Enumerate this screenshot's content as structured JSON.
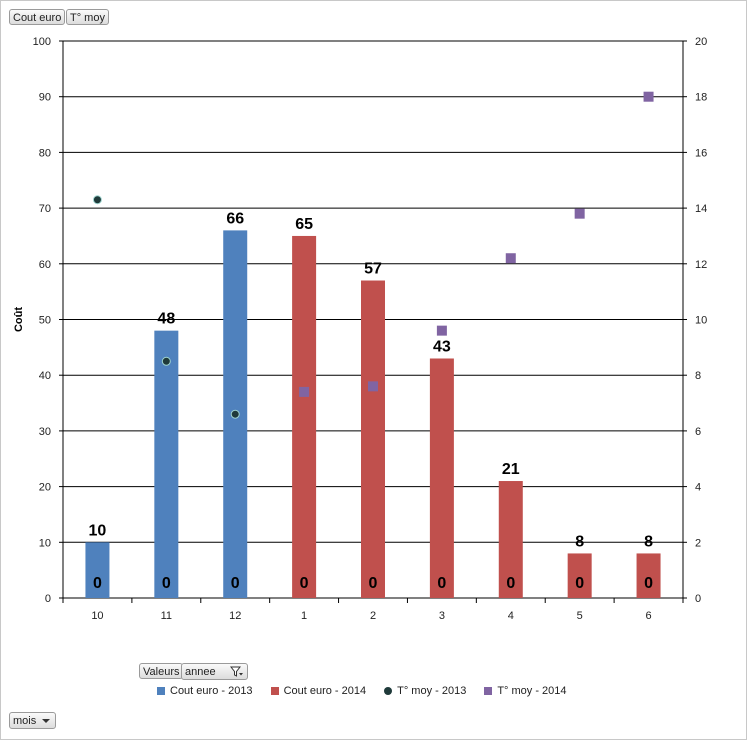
{
  "buttons": {
    "cout_euro": "Cout euro",
    "t_moy": "T° moy",
    "valeurs": "Valeurs",
    "annee": "annee",
    "mois": "mois"
  },
  "icons": {
    "filter": "filter-icon",
    "dropdown": "chevron-down-icon"
  },
  "chart_data": {
    "type": "bar",
    "categories": [
      "10",
      "11",
      "12",
      "1",
      "2",
      "3",
      "4",
      "5",
      "6"
    ],
    "ylabel": "Coût",
    "ylim": [
      0,
      100
    ],
    "y_ticks": [
      "0",
      "10",
      "20",
      "30",
      "40",
      "50",
      "60",
      "70",
      "80",
      "90",
      "100"
    ],
    "y2lim": [
      0,
      20
    ],
    "y2_ticks": [
      "0",
      "2",
      "4",
      "6",
      "8",
      "10",
      "12",
      "14",
      "16",
      "18",
      "20"
    ],
    "grid": true,
    "legend_position": "bottom",
    "series": [
      {
        "name": "Cout euro - 2013",
        "kind": "bar",
        "color": "#4f81bd",
        "values": [
          10,
          48,
          66,
          null,
          null,
          null,
          null,
          null,
          null
        ],
        "labels": [
          "10",
          "48",
          "66",
          "",
          "",
          "",
          "",
          "",
          ""
        ]
      },
      {
        "name": "Cout euro - 2014",
        "kind": "bar",
        "color": "#c0504d",
        "values": [
          null,
          null,
          null,
          65,
          57,
          43,
          21,
          8,
          8
        ],
        "labels": [
          "",
          "",
          "",
          "65",
          "57",
          "43",
          "21",
          "8",
          "8"
        ]
      },
      {
        "name": "T° moy - 2013",
        "kind": "marker-circle",
        "axis": "right",
        "color": "#1f3a3a",
        "values": [
          14.3,
          8.5,
          6.6,
          null,
          null,
          null,
          null,
          null,
          null
        ]
      },
      {
        "name": "T° moy - 2014",
        "kind": "marker-square",
        "axis": "right",
        "color": "#8064a2",
        "values": [
          null,
          null,
          null,
          7.4,
          7.6,
          9.6,
          12.2,
          13.8,
          18
        ]
      }
    ],
    "zero_labels": [
      "0",
      "0",
      "0",
      "0",
      "0",
      "0",
      "0",
      "0",
      "0"
    ]
  }
}
